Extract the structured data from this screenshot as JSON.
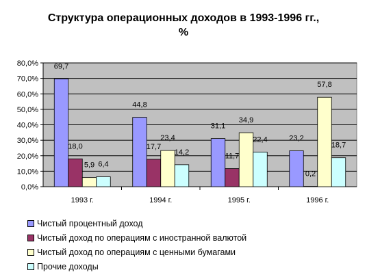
{
  "chart_data": {
    "type": "bar",
    "title_line1": "Структура операционных доходов в 1993-1996 гг.,",
    "title_line2": "%",
    "categories": [
      "1993 г.",
      "1994 г.",
      "1995 г.",
      "1996 г."
    ],
    "ylim": [
      0,
      80
    ],
    "y_ticks": [
      "0,0%",
      "10,0%",
      "20,0%",
      "30,0%",
      "40,0%",
      "50,0%",
      "60,0%",
      "70,0%",
      "80,0%"
    ],
    "grid": true,
    "plot_background": "#c0c0c0",
    "legend_position": "bottom",
    "series": [
      {
        "name": "Чистый процентный доход",
        "color": "#9999ff",
        "values": [
          69.7,
          44.8,
          31.1,
          23.2
        ],
        "labels": [
          "69,7",
          "44,8",
          "31,1",
          "23,2"
        ]
      },
      {
        "name": "Чистый доход по операциям с иностранной валютой",
        "color": "#993366",
        "values": [
          18.0,
          17.7,
          11.7,
          0.2
        ],
        "labels": [
          "18,0",
          "17,7",
          "11,7",
          "0,2"
        ]
      },
      {
        "name": "Чистый доход по операциям с ценными бумагами",
        "color": "#ffffcc",
        "values": [
          5.9,
          23.4,
          34.9,
          57.8
        ],
        "labels": [
          "5,9",
          "23,4",
          "34,9",
          "57,8"
        ]
      },
      {
        "name": "Прочие доходы",
        "color": "#ccffff",
        "values": [
          6.4,
          14.2,
          22.4,
          18.7
        ],
        "labels": [
          "6,4",
          "14,2",
          "22,4",
          "18,7"
        ]
      }
    ]
  }
}
